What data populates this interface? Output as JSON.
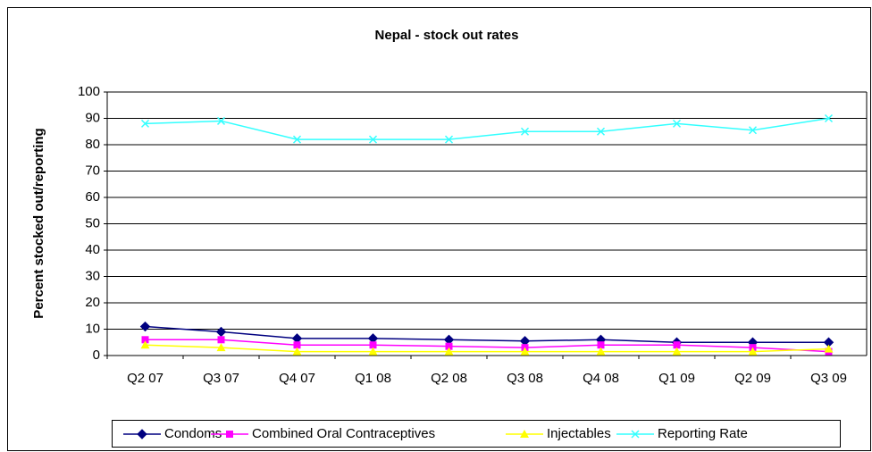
{
  "chart_data": {
    "type": "line",
    "title": "Nepal - stock out rates",
    "ylabel": "Percent stocked out/reporting",
    "categories": [
      "Q2 07",
      "Q3 07",
      "Q4 07",
      "Q1 08",
      "Q2 08",
      "Q3 08",
      "Q4 08",
      "Q1 09",
      "Q2 09",
      "Q3 09"
    ],
    "series": [
      {
        "name": "Condoms",
        "color": "#000080",
        "marker": "diamond",
        "values": [
          11,
          9,
          6.5,
          6.5,
          6,
          5.5,
          6,
          5,
          5,
          5
        ]
      },
      {
        "name": "Combined Oral Contraceptives",
        "color": "#ff00ff",
        "marker": "square",
        "values": [
          6,
          6,
          4,
          4,
          3.5,
          3,
          4,
          4,
          3,
          1.5
        ]
      },
      {
        "name": "Injectables",
        "color": "#ffff00",
        "marker": "triangle",
        "values": [
          4,
          3,
          1.5,
          1.5,
          1.5,
          1.5,
          1.5,
          1.5,
          1.5,
          2.5
        ]
      },
      {
        "name": "Reporting Rate",
        "color": "#33ffff",
        "marker": "x",
        "values": [
          88,
          89,
          82,
          82,
          82,
          85,
          85,
          88,
          85.5,
          90
        ]
      }
    ],
    "ylim": [
      0,
      100
    ],
    "yticks": [
      0,
      10,
      20,
      30,
      40,
      50,
      60,
      70,
      80,
      90,
      100
    ],
    "grid": true,
    "legend": "bottom"
  }
}
